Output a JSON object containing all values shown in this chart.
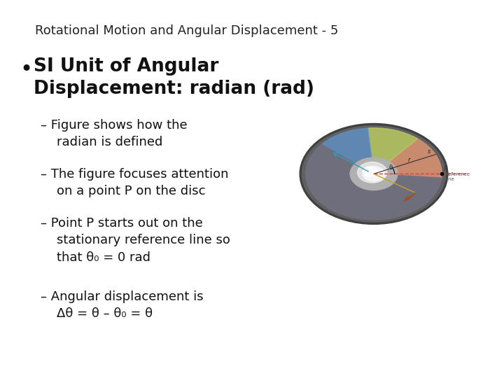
{
  "title": "Rotational Motion and Angular Displacement - 5",
  "title_fontsize": 13,
  "title_color": "#222222",
  "bg_color": "#ffffff",
  "bullet_marker": "•",
  "bullet_text": "SI Unit of Angular\nDisplacement: radian (rad)",
  "bullet_fontsize": 19,
  "sub_bullets": [
    "– Figure shows how the\n    radian is defined",
    "– The figure focuses attention\n    on a point P on the disc",
    "– Point P starts out on the\n    stationary reference line so\n    that θ₀ = 0 rad",
    "– Angular displacement is\n    Δθ = θ – θ₀ = θ"
  ],
  "sub_fontsize": 13,
  "text_color": "#111111",
  "disc_colors": {
    "outer": "#606060",
    "orange": "#d49070",
    "green": "#b8c860",
    "blue": "#6090c8",
    "dark": "#707080",
    "inner_ring": "#b0b0b0",
    "inner_hole": "#e8e8e8",
    "ref_line": "#cc4444",
    "arrow_brown": "#a05020",
    "arrow_cyan": "#30a0b0"
  }
}
